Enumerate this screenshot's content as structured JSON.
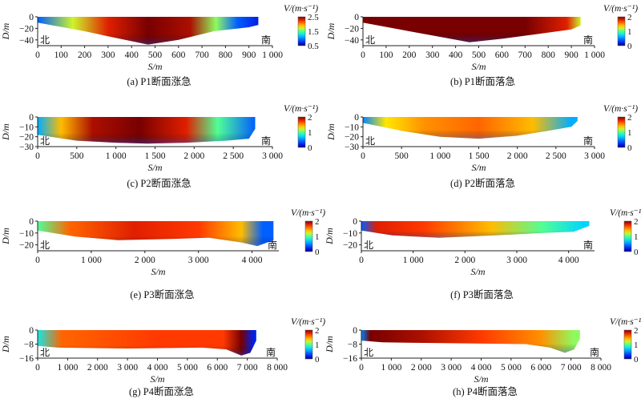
{
  "figure": {
    "panels": [
      {
        "caption": "(a) P1断面涨急",
        "y_label": "D/m",
        "x_label": "S/m",
        "legend_title": "V/(m·s⁻¹)",
        "bank_left": "北",
        "bank_right": "南"
      },
      {
        "caption": "(b) P1断面落急",
        "y_label": "D/m",
        "x_label": "S/m",
        "legend_title": "V/(m·s⁻¹)",
        "bank_left": "北",
        "bank_right": "南"
      },
      {
        "caption": "(c) P2断面涨急",
        "y_label": "D/m",
        "x_label": "S/m",
        "legend_title": "V/(m·s⁻¹)",
        "bank_left": "北",
        "bank_right": "南"
      },
      {
        "caption": "(d) P2断面落急",
        "y_label": "D/m",
        "x_label": "S/m",
        "legend_title": "V/(m·s⁻¹)",
        "bank_left": "北",
        "bank_right": "南"
      },
      {
        "caption": "(e) P3断面涨急",
        "y_label": "D/m",
        "x_label": "S/m",
        "legend_title": "V/(m·s⁻¹)",
        "bank_left": "北",
        "bank_right": "南"
      },
      {
        "caption": "(f) P3断面落急",
        "y_label": "D/m",
        "x_label": "S/m",
        "legend_title": "V/(m·s⁻¹)",
        "bank_left": "北",
        "bank_right": "南"
      },
      {
        "caption": "(g) P4断面涨急",
        "y_label": "D/m",
        "x_label": "S/m",
        "legend_title": "V/(m·s⁻¹)",
        "bank_left": "北",
        "bank_right": "南"
      },
      {
        "caption": "(h) P4断面落急",
        "y_label": "D/m",
        "x_label": "S/m",
        "legend_title": "V/(m·s⁻¹)",
        "bank_left": "北",
        "bank_right": "南"
      }
    ]
  },
  "chart_data": [
    {
      "type": "heatmap",
      "title": "(a) P1断面涨急",
      "xlabel": "S/m",
      "ylabel": "D/m",
      "xlim": [
        0,
        1000
      ],
      "ylim": [
        -50,
        0
      ],
      "x_ticks": [
        0,
        100,
        200,
        300,
        400,
        500,
        600,
        700,
        800,
        900,
        1000
      ],
      "x_tick_labels": [
        "0",
        "100",
        "200",
        "300",
        "400",
        "500",
        "600",
        "700",
        "800",
        "900",
        "1 000"
      ],
      "y_ticks": [
        0,
        -20,
        -40
      ],
      "y_tick_labels": [
        "0",
        "−20",
        "−40"
      ],
      "colorbar": {
        "label": "V/(m·s⁻¹)",
        "range": [
          0.5,
          2.5
        ],
        "ticks": [
          "2.5",
          "1.5",
          "0.5"
        ]
      },
      "cross_section_x": [
        0,
        940
      ],
      "bed_profile": [
        [
          0,
          -10
        ],
        [
          200,
          -25
        ],
        [
          350,
          -38
        ],
        [
          470,
          -48
        ],
        [
          600,
          -40
        ],
        [
          750,
          -25
        ],
        [
          900,
          -18
        ],
        [
          940,
          -14
        ]
      ],
      "velocity_samples": [
        [
          0,
          0.9
        ],
        [
          150,
          1.7
        ],
        [
          300,
          2.3
        ],
        [
          470,
          2.6
        ],
        [
          650,
          2.4
        ],
        [
          760,
          1.6
        ],
        [
          850,
          0.9
        ],
        [
          940,
          0.7
        ]
      ]
    },
    {
      "type": "heatmap",
      "title": "(b) P1断面落急",
      "xlabel": "S/m",
      "ylabel": "D/m",
      "xlim": [
        0,
        1000
      ],
      "ylim": [
        -50,
        0
      ],
      "x_ticks": [
        0,
        100,
        200,
        300,
        400,
        500,
        600,
        700,
        800,
        900,
        1000
      ],
      "x_tick_labels": [
        "0",
        "100",
        "200",
        "300",
        "400",
        "500",
        "600",
        "700",
        "800",
        "900",
        "1 000"
      ],
      "y_ticks": [
        0,
        -20,
        -40
      ],
      "y_tick_labels": [
        "0",
        "−20",
        "−40"
      ],
      "colorbar": {
        "label": "V/(m·s⁻¹)",
        "range": [
          0,
          2
        ],
        "ticks": [
          "2",
          "1",
          "0"
        ]
      },
      "cross_section_x": [
        0,
        940
      ],
      "bed_profile": [
        [
          0,
          -10
        ],
        [
          200,
          -25
        ],
        [
          350,
          -36
        ],
        [
          460,
          -44
        ],
        [
          600,
          -38
        ],
        [
          750,
          -30
        ],
        [
          900,
          -22
        ],
        [
          940,
          -15
        ]
      ],
      "velocity_samples": [
        [
          0,
          2.0
        ],
        [
          200,
          2.0
        ],
        [
          470,
          2.0
        ],
        [
          700,
          2.0
        ],
        [
          880,
          1.8
        ],
        [
          940,
          1.2
        ]
      ]
    },
    {
      "type": "heatmap",
      "title": "(c) P2断面涨急",
      "xlabel": "S/m",
      "ylabel": "D/m",
      "xlim": [
        0,
        3000
      ],
      "ylim": [
        -30,
        0
      ],
      "x_ticks": [
        0,
        500,
        1000,
        1500,
        2000,
        2500,
        3000
      ],
      "x_tick_labels": [
        "0",
        "500",
        "1 000",
        "1 500",
        "2 000",
        "2 500",
        "3 000"
      ],
      "y_ticks": [
        0,
        -10,
        -20,
        -30
      ],
      "y_tick_labels": [
        "0",
        "−10",
        "−20",
        "−30"
      ],
      "colorbar": {
        "label": "V/(m·s⁻¹)",
        "range": [
          0,
          2
        ],
        "ticks": [
          "2",
          "1",
          "0"
        ]
      },
      "cross_section_x": [
        0,
        2780
      ],
      "bed_profile": [
        [
          0,
          -18
        ],
        [
          500,
          -24
        ],
        [
          1000,
          -26
        ],
        [
          1400,
          -27
        ],
        [
          1900,
          -26
        ],
        [
          2400,
          -24
        ],
        [
          2700,
          -22
        ],
        [
          2780,
          -12
        ]
      ],
      "velocity_samples": [
        [
          0,
          0.6
        ],
        [
          300,
          1.4
        ],
        [
          700,
          1.9
        ],
        [
          1300,
          2.0
        ],
        [
          1900,
          1.8
        ],
        [
          2300,
          1.0
        ],
        [
          2780,
          0.4
        ]
      ]
    },
    {
      "type": "heatmap",
      "title": "(d) P2断面落急",
      "xlabel": "S/m",
      "ylabel": "D/m",
      "xlim": [
        0,
        3000
      ],
      "ylim": [
        -30,
        0
      ],
      "x_ticks": [
        0,
        500,
        1000,
        1500,
        2000,
        2500,
        3000
      ],
      "x_tick_labels": [
        "0",
        "500",
        "1 000",
        "1 500",
        "2 000",
        "2 500",
        "3 000"
      ],
      "y_ticks": [
        0,
        -10,
        -20,
        -30
      ],
      "y_tick_labels": [
        "0",
        "−10",
        "−20",
        "−30"
      ],
      "colorbar": {
        "label": "V/(m·s⁻¹)",
        "range": [
          0,
          2
        ],
        "ticks": [
          "2",
          "1",
          "0"
        ]
      },
      "cross_section_x": [
        0,
        2780
      ],
      "bed_profile": [
        [
          0,
          -6
        ],
        [
          500,
          -14
        ],
        [
          1000,
          -20
        ],
        [
          1500,
          -22
        ],
        [
          2000,
          -19
        ],
        [
          2400,
          -14
        ],
        [
          2700,
          -10
        ],
        [
          2780,
          -4
        ]
      ],
      "velocity_samples": [
        [
          0,
          0.5
        ],
        [
          300,
          1.3
        ],
        [
          800,
          1.5
        ],
        [
          1500,
          1.6
        ],
        [
          2200,
          1.4
        ],
        [
          2700,
          0.6
        ]
      ]
    },
    {
      "type": "heatmap",
      "title": "(e) P3断面涨急",
      "xlabel": "S/m",
      "ylabel": "D/m",
      "xlim": [
        0,
        4500
      ],
      "ylim": [
        -25,
        0
      ],
      "x_ticks": [
        0,
        1000,
        2000,
        3000,
        4000
      ],
      "x_tick_labels": [
        "0",
        "1 000",
        "2 000",
        "3 000",
        "4 000"
      ],
      "y_ticks": [
        0,
        -10,
        -20
      ],
      "y_tick_labels": [
        "0",
        "−10",
        "−20"
      ],
      "colorbar": {
        "label": "V/(m·s⁻¹)",
        "range": [
          0,
          2
        ],
        "ticks": [
          "2",
          "1",
          "0"
        ]
      },
      "cross_section_x": [
        0,
        4400
      ],
      "bed_profile": [
        [
          0,
          -8
        ],
        [
          700,
          -13
        ],
        [
          1500,
          -16
        ],
        [
          2500,
          -15
        ],
        [
          3200,
          -14
        ],
        [
          3800,
          -18
        ],
        [
          4100,
          -21
        ],
        [
          4400,
          -16
        ]
      ],
      "velocity_samples": [
        [
          0,
          1.0
        ],
        [
          600,
          1.6
        ],
        [
          1800,
          1.8
        ],
        [
          3000,
          1.7
        ],
        [
          3800,
          1.4
        ],
        [
          4200,
          0.4
        ]
      ]
    },
    {
      "type": "heatmap",
      "title": "(f) P3断面落急",
      "xlabel": "S/m",
      "ylabel": "D/m",
      "xlim": [
        0,
        4500
      ],
      "ylim": [
        -25,
        0
      ],
      "x_ticks": [
        0,
        1000,
        2000,
        3000,
        4000
      ],
      "x_tick_labels": [
        "0",
        "1 000",
        "2 000",
        "3 000",
        "4 000"
      ],
      "y_ticks": [
        0,
        -10,
        -20
      ],
      "y_tick_labels": [
        "0",
        "−10",
        "−20"
      ],
      "colorbar": {
        "label": "V/(m·s⁻¹)",
        "range": [
          0,
          2
        ],
        "ticks": [
          "2",
          "1",
          "0"
        ]
      },
      "cross_section_x": [
        0,
        4400
      ],
      "bed_profile": [
        [
          0,
          -8
        ],
        [
          600,
          -12
        ],
        [
          1500,
          -14
        ],
        [
          2600,
          -12
        ],
        [
          3500,
          -10
        ],
        [
          4100,
          -9
        ],
        [
          4400,
          -4
        ]
      ],
      "velocity_samples": [
        [
          0,
          0.4
        ],
        [
          300,
          1.8
        ],
        [
          1200,
          1.7
        ],
        [
          2500,
          1.4
        ],
        [
          3500,
          1.0
        ],
        [
          4300,
          0.7
        ]
      ]
    },
    {
      "type": "heatmap",
      "title": "(g) P4断面涨急",
      "xlabel": "S/m",
      "ylabel": "D/m",
      "xlim": [
        0,
        8000
      ],
      "ylim": [
        -16,
        0
      ],
      "x_ticks": [
        0,
        1000,
        2000,
        3000,
        4000,
        5000,
        6000,
        7000,
        8000
      ],
      "x_tick_labels": [
        "0",
        "1 000",
        "2 000",
        "3 000",
        "4 000",
        "5 000",
        "6 000",
        "7 000",
        "8 000"
      ],
      "y_ticks": [
        0,
        -8,
        -16
      ],
      "y_tick_labels": [
        "0",
        "−8",
        "−16"
      ],
      "colorbar": {
        "label": "V/(m·s⁻¹)",
        "range": [
          0,
          2
        ],
        "ticks": [
          "2",
          "1",
          "0"
        ]
      },
      "cross_section_x": [
        0,
        7300
      ],
      "bed_profile": [
        [
          0,
          -9
        ],
        [
          700,
          -10
        ],
        [
          3000,
          -10.5
        ],
        [
          5500,
          -10
        ],
        [
          6300,
          -11
        ],
        [
          6800,
          -14.5
        ],
        [
          7100,
          -13
        ],
        [
          7300,
          -6
        ]
      ],
      "velocity_samples": [
        [
          0,
          0.8
        ],
        [
          800,
          1.6
        ],
        [
          4000,
          1.7
        ],
        [
          6200,
          1.7
        ],
        [
          6800,
          2.1
        ],
        [
          7200,
          0.2
        ]
      ]
    },
    {
      "type": "heatmap",
      "title": "(h) P4断面落急",
      "xlabel": "S/m",
      "ylabel": "D/m",
      "xlim": [
        0,
        8000
      ],
      "ylim": [
        -16,
        0
      ],
      "x_ticks": [
        0,
        1000,
        2000,
        3000,
        4000,
        5000,
        6000,
        7000,
        8000
      ],
      "x_tick_labels": [
        "0",
        "1 000",
        "2 000",
        "3 000",
        "4 000",
        "5 000",
        "6 000",
        "7 000",
        "8 000"
      ],
      "y_ticks": [
        0,
        -8,
        -16
      ],
      "y_tick_labels": [
        "0",
        "−8",
        "−16"
      ],
      "colorbar": {
        "label": "V/(m·s⁻¹)",
        "range": [
          0,
          2
        ],
        "ticks": [
          "2",
          "1",
          "0"
        ]
      },
      "cross_section_x": [
        0,
        7300
      ],
      "bed_profile": [
        [
          0,
          -6
        ],
        [
          700,
          -7
        ],
        [
          3000,
          -7.5
        ],
        [
          5500,
          -8
        ],
        [
          6300,
          -10
        ],
        [
          6800,
          -13
        ],
        [
          7100,
          -11
        ],
        [
          7300,
          -5
        ]
      ],
      "velocity_samples": [
        [
          0,
          0.5
        ],
        [
          300,
          2.0
        ],
        [
          2000,
          1.9
        ],
        [
          4000,
          1.7
        ],
        [
          6000,
          1.5
        ],
        [
          7100,
          1.1
        ]
      ]
    }
  ]
}
